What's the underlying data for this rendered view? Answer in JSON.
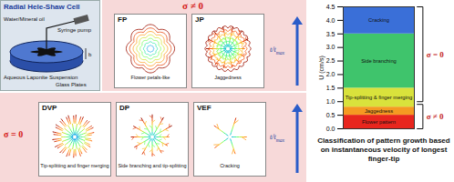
{
  "schematic": {
    "title": "Radial Hele-Shaw Cell",
    "labels": {
      "fluid": "Water/Mineral oil",
      "pump": "Syringe pump",
      "suspension": "Aqueous Laponite Suspension",
      "plates": "Glass Plates",
      "gap": "b"
    }
  },
  "groups": [
    {
      "label": "σ ≠ 0",
      "time_label": {
        "text": "t/t",
        "subscript": "max"
      },
      "panels": [
        {
          "code": "FP",
          "caption": "Flower petals-like"
        },
        {
          "code": "JP",
          "caption": "Jaggedness"
        }
      ]
    },
    {
      "label": "σ = 0",
      "time_label": {
        "text": "t/t",
        "subscript": "max"
      },
      "panels": [
        {
          "code": "DVP",
          "caption": "Tip-splitting and finger merging"
        },
        {
          "code": "DP",
          "caption": "Side branching and tip-splitting"
        },
        {
          "code": "VEF",
          "caption": "Cracking"
        }
      ]
    }
  ],
  "chart_data": {
    "type": "bar",
    "title": "Classification of pattern growth based on instantaneous velocity of longest finger-tip",
    "ylabel": "U (cm/s)",
    "ylim": [
      0,
      4.5
    ],
    "yticks": [
      {
        "value": 0,
        "label": "0.0"
      },
      0.5,
      {
        "value": 1,
        "label": "1.0"
      },
      1.5,
      {
        "value": 2,
        "label": "2.0"
      },
      2.5,
      {
        "value": 3,
        "label": "3.0"
      },
      3.5,
      {
        "value": 4,
        "label": "4.0"
      },
      4.5
    ],
    "bands": [
      {
        "name": "Flower pattern",
        "from": 0,
        "to": 0.5,
        "color": "#e8261e"
      },
      {
        "name": "Jaggedness",
        "from": 0.5,
        "to": 0.8,
        "color": "#f59a22"
      },
      {
        "name": "Tip-splitting & finger merging",
        "from": 0.8,
        "to": 1.5,
        "color": "#d9e23c"
      },
      {
        "name": "Side branching",
        "from": 1.5,
        "to": 3.5,
        "color": "#3fc46c"
      },
      {
        "name": "Cracking",
        "from": 3.5,
        "to": 4.5,
        "color": "#3a6fd8"
      }
    ],
    "brackets": [
      {
        "label": "σ ≠ 0",
        "from": 0,
        "to": 0.9
      },
      {
        "label": "σ = 0",
        "from": 1.0,
        "to": 4.5
      }
    ]
  }
}
